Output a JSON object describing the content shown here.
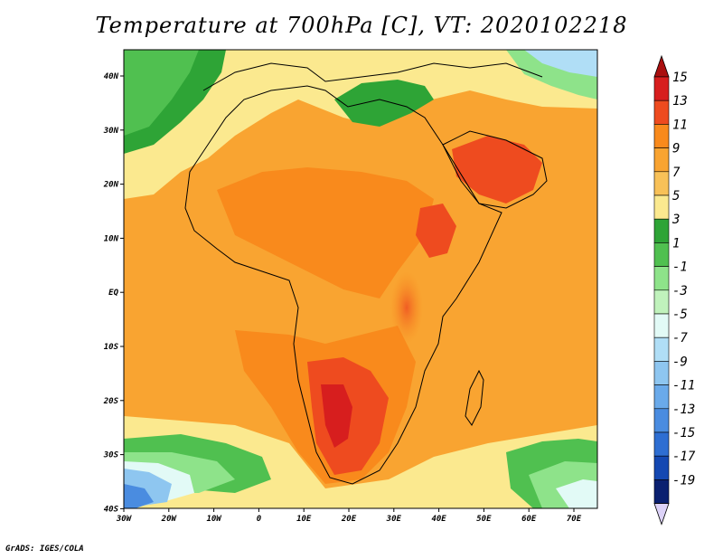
{
  "title": "Temperature at 700hPa [C], VT: 2020102218",
  "credit": "GrADS: IGES/COLA",
  "map": {
    "lon_labels": [
      "30W",
      "20W",
      "10W",
      "0",
      "10E",
      "20E",
      "30E",
      "40E",
      "50E",
      "60E",
      "70E"
    ],
    "lat_labels": [
      "40N",
      "30N",
      "20N",
      "10N",
      "EQ",
      "10S",
      "20S",
      "30S",
      "40S"
    ]
  },
  "colorbar": {
    "labels": [
      "15",
      "13",
      "11",
      "9",
      "7",
      "5",
      "3",
      "1",
      "-1",
      "-3",
      "-5",
      "-7",
      "-9",
      "-11",
      "-13",
      "-15",
      "-17",
      "-19"
    ],
    "colors": [
      "#d71e1e",
      "#ee4b1f",
      "#f98a1c",
      "#f9a431",
      "#f8c158",
      "#fbe98f",
      "#2ea436",
      "#50c050",
      "#8ee38a",
      "#c0f2bc",
      "#e2faf6",
      "#b0def6",
      "#8ec6f0",
      "#6aaaea",
      "#4a8ce0",
      "#2e6ed2",
      "#1448b2",
      "#0a2070"
    ],
    "top_cap_color": "#aa0f0f",
    "bottom_cap_color": "#dcd2f8"
  }
}
